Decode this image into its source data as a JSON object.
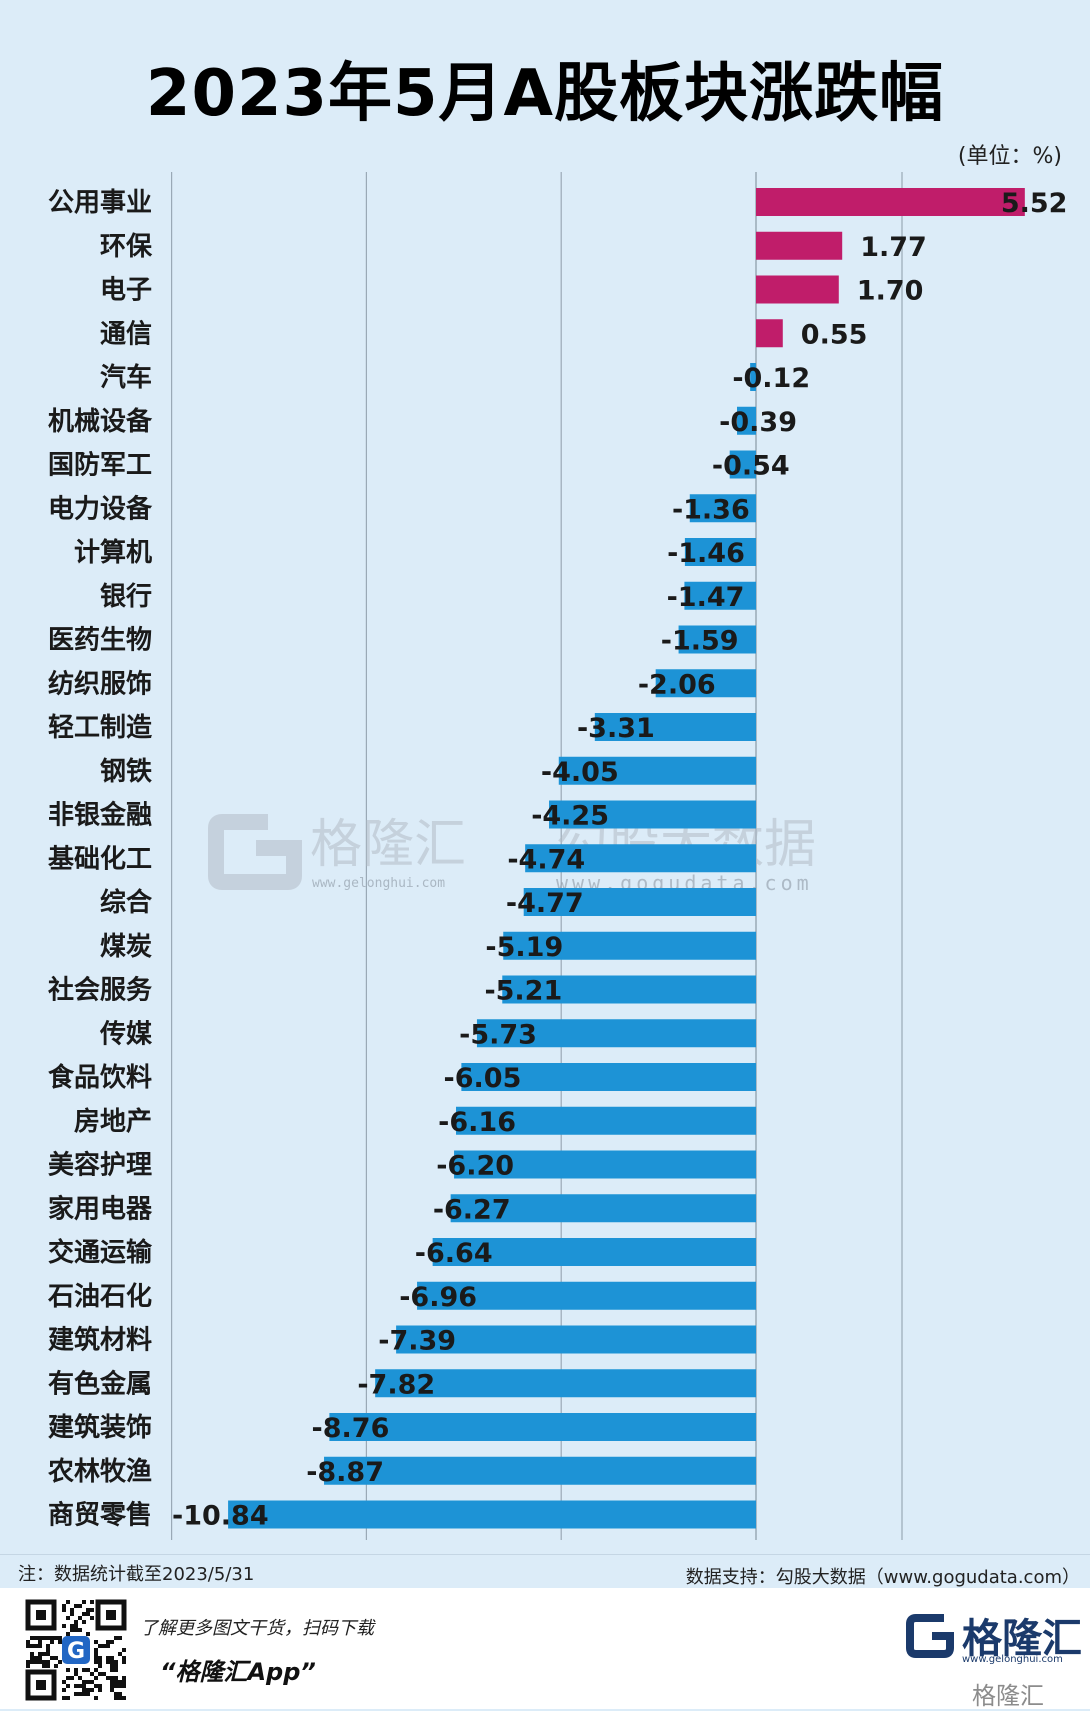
{
  "title": "2023年5月A股板块涨跌幅",
  "unit": "(单位：%)",
  "chart_data": {
    "type": "bar",
    "orientation": "horizontal",
    "categories": [
      "公用事业",
      "环保",
      "电子",
      "通信",
      "汽车",
      "机械设备",
      "国防军工",
      "电力设备",
      "计算机",
      "银行",
      "医药生物",
      "纺织服饰",
      "轻工制造",
      "钢铁",
      "非银金融",
      "基础化工",
      "综合",
      "煤炭",
      "社会服务",
      "传媒",
      "食品饮料",
      "房地产",
      "美容护理",
      "家用电器",
      "交通运输",
      "石油石化",
      "建筑材料",
      "有色金属",
      "建筑装饰",
      "农林牧渔",
      "商贸零售"
    ],
    "values": [
      5.52,
      1.77,
      1.7,
      0.55,
      -0.12,
      -0.39,
      -0.54,
      -1.36,
      -1.46,
      -1.47,
      -1.59,
      -2.06,
      -3.31,
      -4.05,
      -4.25,
      -4.74,
      -4.77,
      -5.19,
      -5.21,
      -5.73,
      -6.05,
      -6.16,
      -6.2,
      -6.27,
      -6.64,
      -6.96,
      -7.39,
      -7.82,
      -8.76,
      -8.87,
      -10.84
    ],
    "value_labels": [
      "5.52",
      "1.77",
      "1.70",
      "0.55",
      "-0.12",
      "-0.39",
      "-0.54",
      "-1.36",
      "-1.46",
      "-1.47",
      "-1.59",
      "-2.06",
      "-3.31",
      "-4.05",
      "-4.25",
      "-4.74",
      "-4.77",
      "-5.19",
      "-5.21",
      "-5.73",
      "-6.05",
      "-6.16",
      "-6.20",
      "-6.27",
      "-6.64",
      "-6.96",
      "-7.39",
      "-7.82",
      "-8.76",
      "-8.87",
      "-10.84"
    ],
    "xlim": [
      -12,
      8
    ],
    "grid": true,
    "colors": {
      "positive": "#c01d6a",
      "negative": "#1d93d6",
      "grid": "#9aa9b6"
    }
  },
  "watermark": {
    "brand": "格隆汇",
    "brand_url": "www.gelonghui.com",
    "partner": "勾股大数据",
    "partner_url": "www.gogudata.com"
  },
  "footer": {
    "note": "注：数据统计截至2023/5/31",
    "source": "数据支持：勾股大数据（www.gogudata.com）",
    "slogan": "了解更多图文干货，扫码下载",
    "app_name": "“格隆汇App”",
    "brand_name": "格隆汇",
    "brand_url": "www.gelonghui.com",
    "corner_brand": "格隆汇",
    "qr_label": "G"
  }
}
